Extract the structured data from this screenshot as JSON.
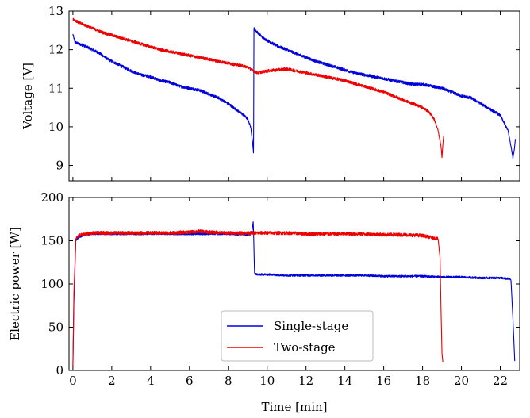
{
  "chart_data": [
    {
      "type": "line",
      "title": "",
      "xlabel": "",
      "ylabel": "Voltage [V]",
      "xlim": [
        -0.2,
        23.0
      ],
      "ylim": [
        8.6,
        13.0
      ],
      "xticks": [
        0,
        2,
        4,
        6,
        8,
        10,
        12,
        14,
        16,
        18,
        20,
        22
      ],
      "xtick_labels_visible": false,
      "yticks": [
        9,
        10,
        11,
        12,
        13
      ],
      "ytick_labels": [
        "9",
        "10",
        "11",
        "12",
        "13"
      ],
      "series": [
        {
          "name": "Single-stage",
          "color": "#0000dd",
          "noise": 0.04,
          "x": [
            0.0,
            0.1,
            0.3,
            0.6,
            1.0,
            1.4,
            1.8,
            2.2,
            2.6,
            3.0,
            3.5,
            4.0,
            4.5,
            5.0,
            5.5,
            6.0,
            6.5,
            7.0,
            7.5,
            8.0,
            8.4,
            8.8,
            9.0,
            9.15,
            9.25,
            9.3,
            9.32,
            9.4,
            9.8,
            10.5,
            11.5,
            12.5,
            13.5,
            14.5,
            15.5,
            16.0,
            16.5,
            17.0,
            17.5,
            18.0,
            18.5,
            19.0,
            19.5,
            20.0,
            20.5,
            21.0,
            21.5,
            22.0,
            22.2,
            22.4,
            22.55,
            22.65,
            22.72,
            22.78
          ],
          "y": [
            12.4,
            12.2,
            12.15,
            12.1,
            12.0,
            11.9,
            11.75,
            11.65,
            11.55,
            11.45,
            11.35,
            11.3,
            11.2,
            11.15,
            11.05,
            11.0,
            10.95,
            10.85,
            10.75,
            10.6,
            10.45,
            10.3,
            10.2,
            10.0,
            9.6,
            9.3,
            12.55,
            12.5,
            12.3,
            12.1,
            11.9,
            11.7,
            11.55,
            11.4,
            11.3,
            11.25,
            11.2,
            11.15,
            11.1,
            11.1,
            11.05,
            11.0,
            10.9,
            10.8,
            10.75,
            10.6,
            10.45,
            10.3,
            10.1,
            9.9,
            9.5,
            9.2,
            9.4,
            9.7
          ]
        },
        {
          "name": "Two-stage",
          "color": "#ee0000",
          "noise": 0.04,
          "x": [
            0.0,
            0.3,
            0.8,
            1.5,
            2.5,
            3.5,
            4.5,
            5.5,
            6.5,
            7.5,
            8.5,
            9.0,
            9.3,
            9.5,
            10.0,
            11.0,
            12.0,
            13.0,
            14.0,
            15.0,
            16.0,
            16.5,
            17.0,
            17.5,
            18.0,
            18.3,
            18.6,
            18.8,
            18.95,
            19.0,
            19.05,
            19.1
          ],
          "y": [
            12.8,
            12.7,
            12.6,
            12.45,
            12.3,
            12.15,
            12.0,
            11.9,
            11.8,
            11.7,
            11.6,
            11.55,
            11.45,
            11.4,
            11.45,
            11.5,
            11.4,
            11.3,
            11.2,
            11.05,
            10.9,
            10.8,
            10.7,
            10.6,
            10.5,
            10.4,
            10.2,
            9.9,
            9.5,
            9.2,
            9.6,
            9.8
          ]
        }
      ]
    },
    {
      "type": "line",
      "title": "",
      "xlabel": "Time [min]",
      "ylabel": "Electric power [W]",
      "xlim": [
        -0.2,
        23.0
      ],
      "ylim": [
        0,
        200
      ],
      "xticks": [
        0,
        2,
        4,
        6,
        8,
        10,
        12,
        14,
        16,
        18,
        20,
        22
      ],
      "xtick_labels": [
        "0",
        "2",
        "4",
        "6",
        "8",
        "10",
        "12",
        "14",
        "16",
        "18",
        "20",
        "22"
      ],
      "yticks": [
        0,
        50,
        100,
        150,
        200
      ],
      "ytick_labels": [
        "0",
        "50",
        "100",
        "150",
        "200"
      ],
      "legend": {
        "position": "lower-center"
      },
      "series": [
        {
          "name": "Single-stage",
          "color": "#0000dd",
          "noise": 1.2,
          "x": [
            0.0,
            0.05,
            0.15,
            0.3,
            0.6,
            1.0,
            2.0,
            3.0,
            4.0,
            5.0,
            6.0,
            7.0,
            8.0,
            9.0,
            9.2,
            9.28,
            9.3,
            9.35,
            9.5,
            10.0,
            11.0,
            12.0,
            13.0,
            14.0,
            15.0,
            16.0,
            17.0,
            18.0,
            19.0,
            20.0,
            21.0,
            22.0,
            22.4,
            22.55,
            22.65,
            22.75
          ],
          "y": [
            5,
            80,
            150,
            154,
            157,
            158,
            158,
            158,
            158,
            158,
            158,
            158,
            158,
            157,
            158,
            172,
            160,
            112,
            111,
            111,
            110,
            110,
            110,
            110,
            110,
            109,
            109,
            109,
            108,
            108,
            107,
            107,
            106,
            105,
            60,
            8
          ]
        },
        {
          "name": "Two-stage",
          "color": "#ee0000",
          "noise": 2.0,
          "x": [
            0.0,
            0.05,
            0.15,
            0.3,
            0.6,
            1.0,
            2.0,
            3.0,
            4.0,
            5.0,
            6.0,
            6.5,
            7.0,
            8.0,
            9.0,
            10.0,
            11.0,
            12.0,
            13.0,
            14.0,
            15.0,
            16.0,
            17.0,
            18.0,
            18.6,
            18.8,
            18.9,
            18.95,
            19.0,
            19.05
          ],
          "y": [
            5,
            90,
            152,
            156,
            158,
            159,
            159,
            159,
            159,
            159,
            160,
            161,
            160,
            159,
            159,
            159,
            159,
            158,
            158,
            158,
            158,
            157,
            157,
            156,
            153,
            152,
            130,
            70,
            20,
            8
          ]
        }
      ]
    }
  ]
}
